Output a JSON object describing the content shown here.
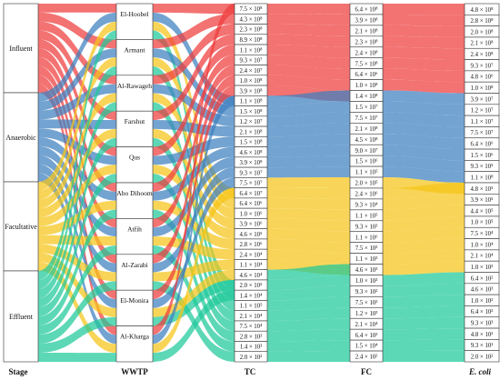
{
  "axis_labels": {
    "stage": "Stage",
    "wwtp": "WWTP",
    "tc": "TC",
    "fc": "FC",
    "ecoli": "E. coli"
  },
  "colors": {
    "influent": "#ee3b3b",
    "anaerobic": "#3d7fbf",
    "facultative": "#f5c518",
    "effluent": "#1ec99a",
    "gray": "#7d7ea3",
    "green": "#3fae52"
  },
  "stages": [
    "Influent",
    "Anaerobic",
    "Facultative",
    "Effluent"
  ],
  "wwtp": [
    "El-Hoobel",
    "Armant",
    "Al-Rawageh",
    "Farshut",
    "Qus",
    "Abo Dihoom",
    "Atfih",
    "Al-Zarabi",
    "El-Monira",
    "Al-Kharga"
  ],
  "tc_values": [
    "7.5 × 10⁸",
    "4.3 × 10⁸",
    "2.3 × 10⁸",
    "8.9 × 10⁸",
    "1.1 × 10⁸",
    "9.3 × 10⁷",
    "2.4 × 10⁷",
    "1.0 × 10⁸",
    "3.9 × 10⁸",
    "1.1 × 10⁸",
    "1.5 × 10⁸",
    "1.2 × 10⁷",
    "2.1 × 10⁸",
    "1.5 × 10⁸",
    "4.6 × 10⁸",
    "3.9 × 10⁸",
    "9.3 × 10⁷",
    "7.5 × 10⁷",
    "6.4 × 10⁷",
    "6.4 × 10⁶",
    "1.0 × 10⁶",
    "3.9 × 10⁶",
    "4.6 × 10⁵",
    "2.8 × 10⁶",
    "2.4 × 10⁴",
    "1.1 × 10⁴",
    "4.6 × 10⁴",
    "2.0 × 10⁵",
    "1.4 × 10⁴",
    "1.1 × 10⁵",
    "2.1 × 10⁴",
    "7.5 × 10⁴",
    "2.8 × 10³",
    "1.4 × 10³",
    "2.0 × 10²"
  ],
  "fc_values": [
    "6.4 × 10⁸",
    "3.9 × 10⁸",
    "2.1 × 10⁸",
    "2.3 × 10⁸",
    "2.4 × 10⁸",
    "7.5 × 10⁸",
    "6.4 × 10⁶",
    "1.0 × 10⁸",
    "1.4 × 10⁸",
    "1.5 × 10⁷",
    "7.5 × 10⁷",
    "2.1 × 10⁸",
    "4.5 × 10⁸",
    "9.0 × 10⁷",
    "1.5 × 10⁶",
    "1.1 × 10⁵",
    "2.0 × 10⁵",
    "2.4 × 10⁶",
    "9.3 × 10⁴",
    "1.1 × 10⁵",
    "9.3 × 10³",
    "1.1 × 10⁶",
    "7.5 × 10³",
    "1.1 × 10³",
    "4.6 × 10³",
    "1.0 × 10³",
    "9.3 × 10²",
    "7.5 × 10²",
    "1.2 × 10³",
    "2.1 × 10⁴",
    "6.4 × 10³",
    "1.5 × 10⁴",
    "2.4 × 10²"
  ],
  "ecoli_values": [
    "4.8 × 10⁸",
    "2.8 × 10⁸",
    "2.0 × 10⁸",
    "2.1 × 10⁸",
    "2.4 × 10⁸",
    "9.3 × 10⁷",
    "4.8 × 10⁶",
    "1.0 × 10⁸",
    "3.9 × 10⁷",
    "1.2 × 10⁷",
    "1.1 × 10⁷",
    "7.5 × 10⁷",
    "6.4 × 10⁶",
    "1.5 × 10⁶",
    "9.3 × 10⁵",
    "1.1 × 10⁸",
    "4.8 × 10⁵",
    "3.9 × 10⁵",
    "4.4 × 10⁵",
    "1.0 × 10⁵",
    "7.5 × 10⁴",
    "1.0 × 10⁴",
    "2.1 × 10⁴",
    "1.0 × 10³",
    "6.4 × 10²",
    "4.6 × 10³",
    "1.0 × 10²",
    "6.4 × 10²",
    "9.3 × 10³",
    "4.8 × 10²",
    "9.3 × 10¹",
    "2.0 × 10²"
  ]
}
